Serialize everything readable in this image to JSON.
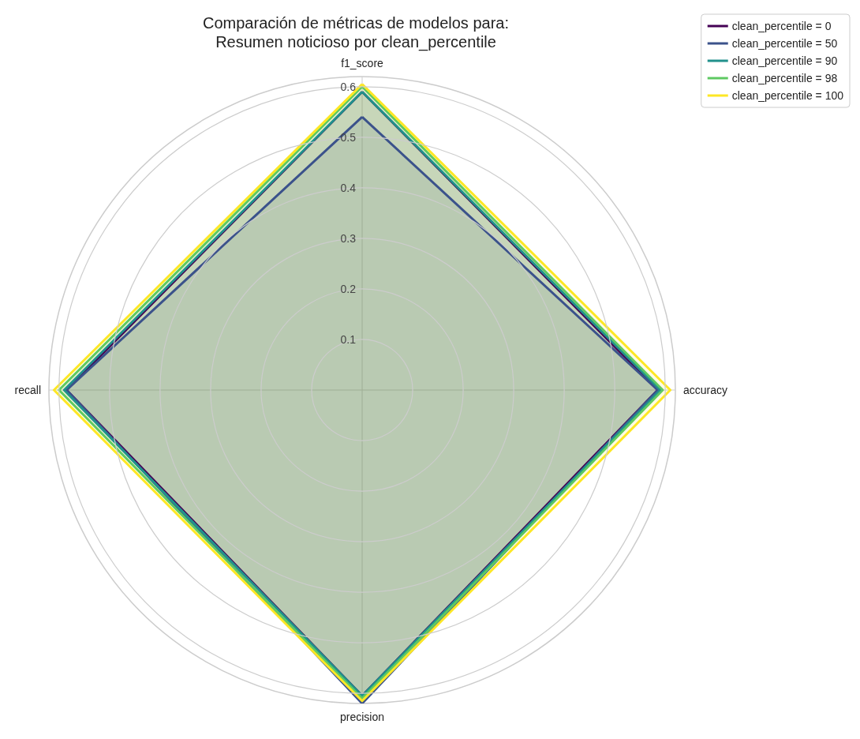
{
  "chart_data": {
    "type": "radar",
    "title": "Comparación de métricas de modelos para:\nResumen noticioso por clean_percentile",
    "categories": [
      "f1_score",
      "accuracy",
      "precision",
      "recall"
    ],
    "series": [
      {
        "name": "clean_percentile = 0",
        "color": "#440154",
        "values": [
          0.59,
          0.585,
          0.605,
          0.585
        ]
      },
      {
        "name": "clean_percentile = 50",
        "color": "#3b528b",
        "values": [
          0.54,
          0.585,
          0.62,
          0.585
        ]
      },
      {
        "name": "clean_percentile = 90",
        "color": "#21918c",
        "values": [
          0.59,
          0.59,
          0.605,
          0.59
        ]
      },
      {
        "name": "clean_percentile = 98",
        "color": "#5ec962",
        "values": [
          0.6,
          0.595,
          0.61,
          0.6
        ]
      },
      {
        "name": "clean_percentile = 100",
        "color": "#fde725",
        "values": [
          0.605,
          0.61,
          0.615,
          0.61
        ]
      }
    ],
    "ylim": [
      0,
      0.62
    ],
    "yticks": [
      0.1,
      0.2,
      0.3,
      0.4,
      0.5,
      0.6
    ],
    "grid": true,
    "legend": "top right",
    "marker": "none"
  }
}
